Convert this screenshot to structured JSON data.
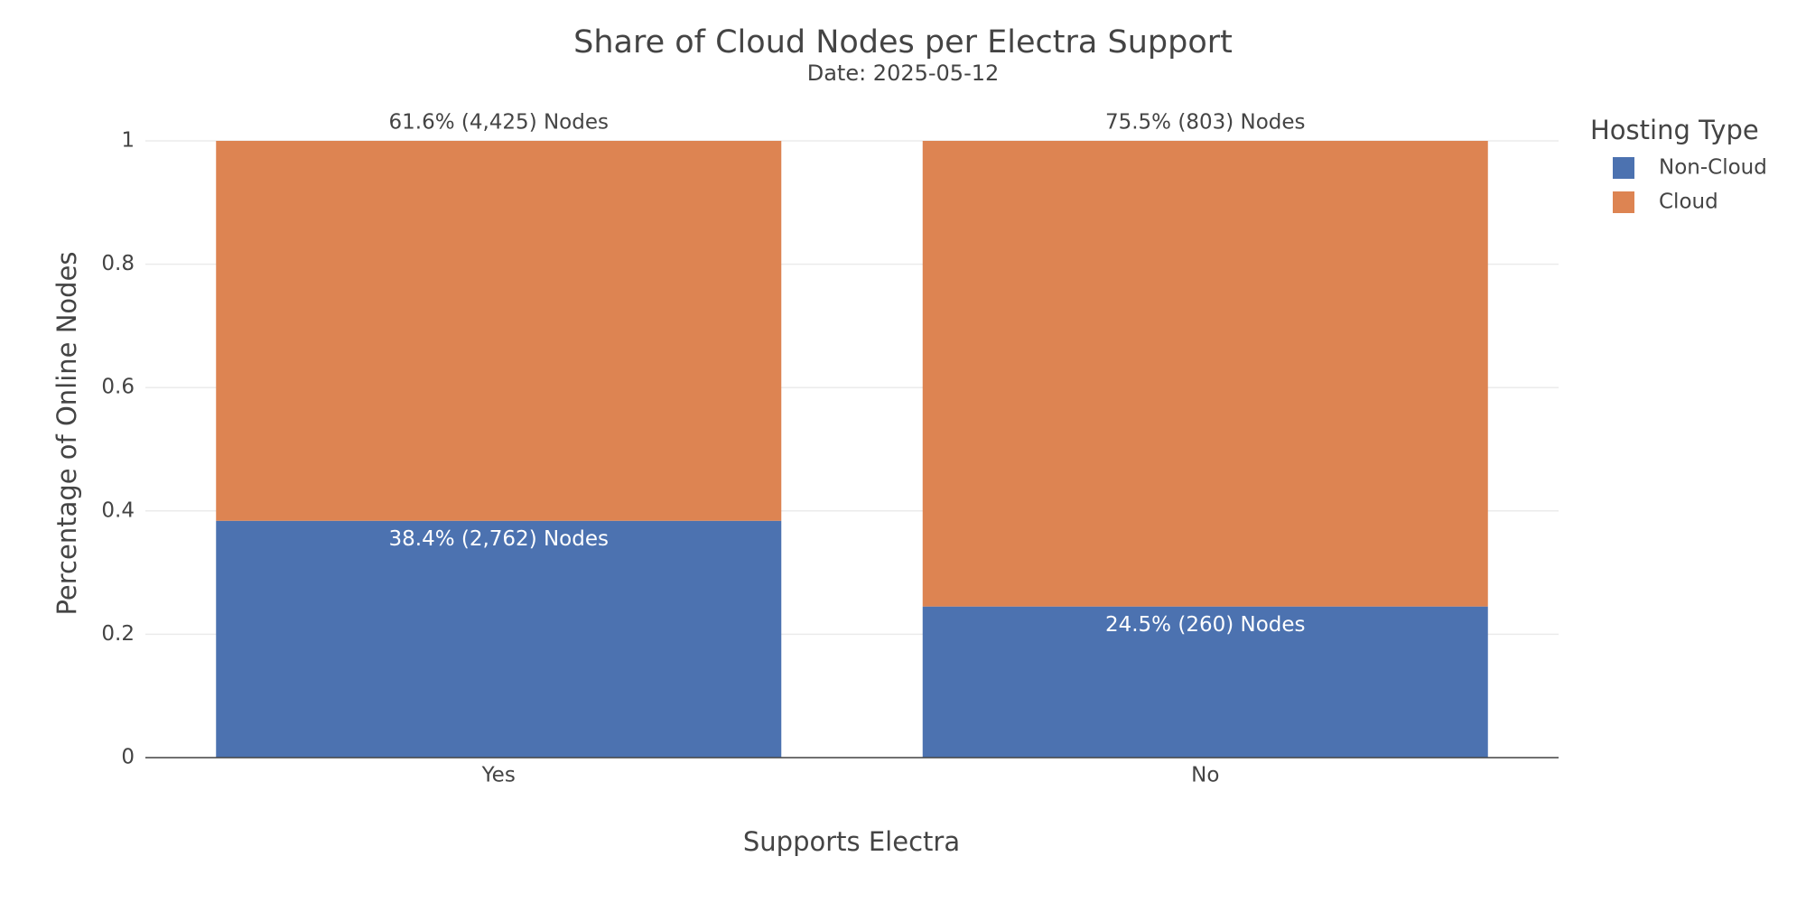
{
  "chart_data": {
    "type": "stacked_bar",
    "title": "Share of Cloud Nodes per Electra Support",
    "subtitle": "Date: 2025-05-12",
    "x_label": "Supports Electra",
    "y_label": "Percentage of Online Nodes",
    "legend_title": "Hosting Type",
    "legend_position": "right",
    "categories": [
      "Yes",
      "No"
    ],
    "series": [
      {
        "name": "Non-Cloud",
        "color": "#4c72b0",
        "values": [
          0.384,
          0.245
        ],
        "value_labels": [
          "38.4% (2,762) Nodes",
          "24.5% (260) Nodes"
        ]
      },
      {
        "name": "Cloud",
        "color": "#dd8452",
        "values": [
          0.616,
          0.755
        ],
        "value_labels": [
          "61.6% (4,425) Nodes",
          "75.5% (803) Nodes"
        ]
      }
    ],
    "ylim": [
      0,
      1
    ],
    "yticks": [
      0,
      0.2,
      0.4,
      0.6,
      0.8,
      1
    ],
    "grid": true
  }
}
